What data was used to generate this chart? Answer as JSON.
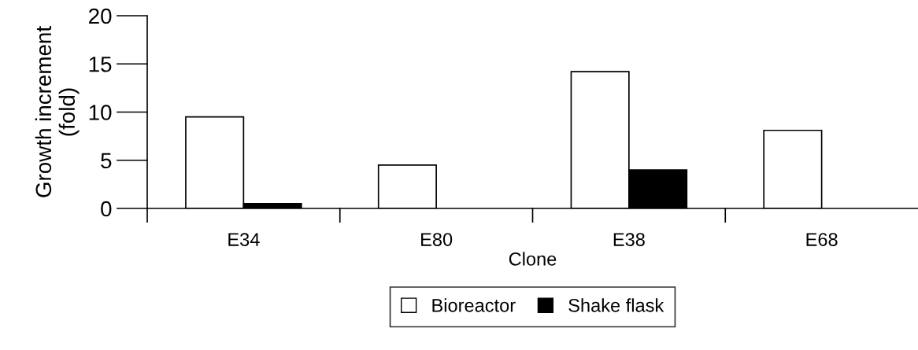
{
  "chart_data": {
    "type": "bar",
    "xlabel": "Clone",
    "ylabel": "Growth increment\n(fold)",
    "categories": [
      "E34",
      "E80",
      "E38",
      "E68"
    ],
    "series": [
      {
        "name": "Bioreactor",
        "color": "#ffffff",
        "values": [
          9.5,
          4.5,
          14.2,
          8.1
        ]
      },
      {
        "name": "Shake flask",
        "color": "#000000",
        "values": [
          0.5,
          null,
          4.0,
          null
        ]
      }
    ],
    "ylim": [
      0,
      20
    ],
    "yticks": [
      0,
      5,
      10,
      15,
      20
    ],
    "grid": false,
    "legend": "bottom"
  }
}
